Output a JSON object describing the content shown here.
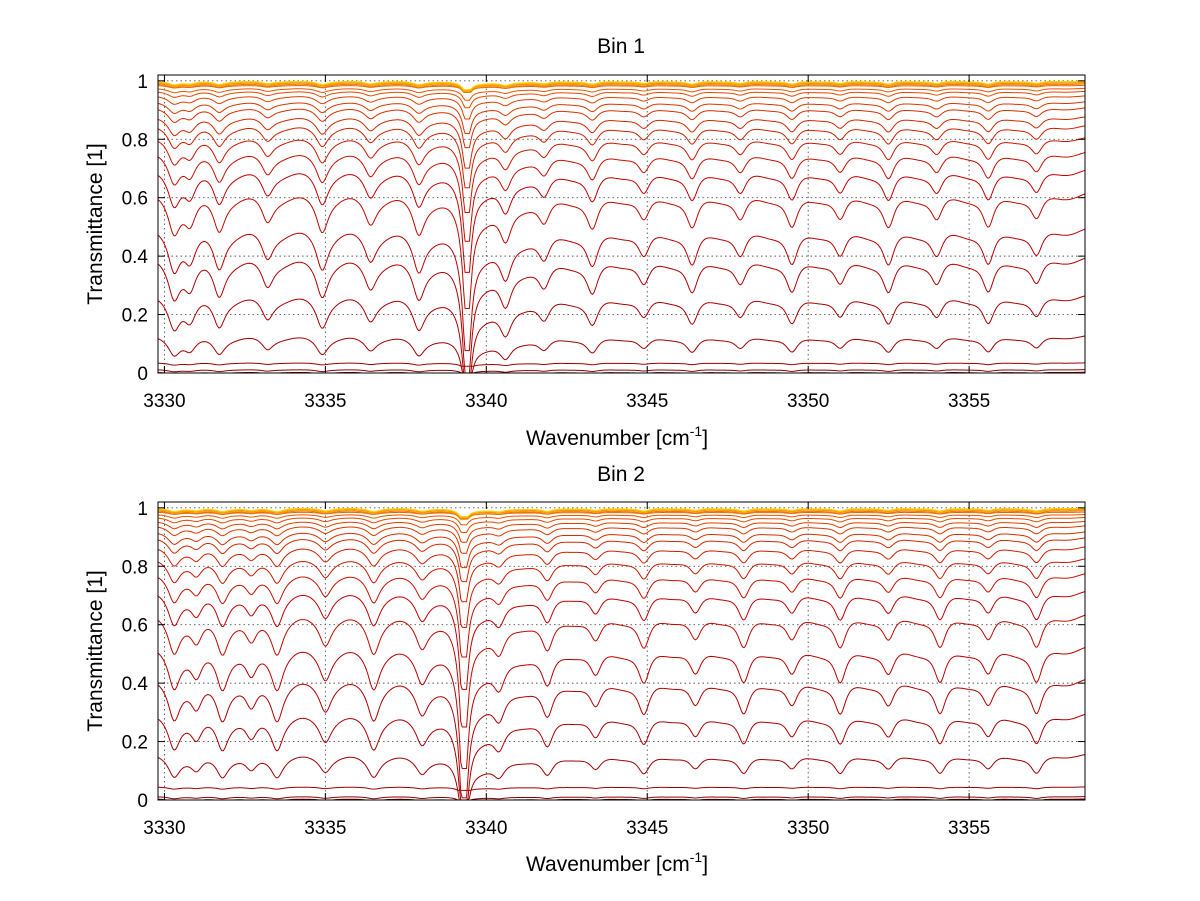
{
  "chart_data": [
    {
      "type": "line",
      "title": "Bin 1",
      "xlabel_main": "Wavenumber [cm",
      "xlabel_sup": "-1",
      "xlabel_end": "]",
      "ylabel": "Transmittance [1]",
      "xlim": [
        3329.8,
        3358.6
      ],
      "ylim": [
        0,
        1.02
      ],
      "xticks": [
        3330,
        3335,
        3340,
        3345,
        3350,
        3355
      ],
      "yticks": [
        0,
        0.2,
        0.4,
        0.6,
        0.8,
        1
      ],
      "grid": true,
      "strong_line_center": 3339.4,
      "line_centers": [
        3330.3,
        3330.8,
        3331.7,
        3333.2,
        3334.9,
        3336.4,
        3337.9,
        3339.4,
        3340.6,
        3341.8,
        3343.3,
        3344.9,
        3346.4,
        3347.9,
        3349.5,
        3351.0,
        3352.5,
        3354.0,
        3355.6,
        3357.1
      ],
      "series_baselines": [
        0.003,
        0.012,
        0.035,
        0.13,
        0.27,
        0.4,
        0.5,
        0.62,
        0.7,
        0.76,
        0.81,
        0.85,
        0.88,
        0.91,
        0.93,
        0.95,
        0.965,
        0.975,
        0.985,
        0.99,
        0.994,
        0.997,
        0.999,
        1.0
      ],
      "series_colors": [
        "#7a0000",
        "#8a0000",
        "#990000",
        "#a00000",
        "#a80000",
        "#b00000",
        "#b80000",
        "#bb0a00",
        "#c00000",
        "#c41000",
        "#c81800",
        "#cc2000",
        "#d02800",
        "#d43000",
        "#d83800",
        "#dc4000",
        "#e04a00",
        "#e45600",
        "#e86400",
        "#ee7a00",
        "#f29000",
        "#f6a800",
        "#fac000",
        "#ffd000"
      ]
    },
    {
      "type": "line",
      "title": "Bin 2",
      "xlabel_main": "Wavenumber [cm",
      "xlabel_sup": "-1",
      "xlabel_end": "]",
      "ylabel": "Transmittance [1]",
      "xlim": [
        3329.8,
        3358.6
      ],
      "ylim": [
        0,
        1.02
      ],
      "xticks": [
        3330,
        3335,
        3340,
        3345,
        3350,
        3355
      ],
      "yticks": [
        0,
        0.2,
        0.4,
        0.6,
        0.8,
        1
      ],
      "grid": true,
      "strong_line_center": 3339.3,
      "line_centers": [
        3330.3,
        3331.0,
        3331.8,
        3332.7,
        3333.5,
        3335.0,
        3336.5,
        3338.0,
        3339.3,
        3340.4,
        3341.9,
        3343.4,
        3344.9,
        3346.5,
        3348.0,
        3349.5,
        3351.0,
        3352.5,
        3354.1,
        3355.6,
        3357.1
      ],
      "series_baselines": [
        0.004,
        0.012,
        0.045,
        0.16,
        0.3,
        0.42,
        0.53,
        0.64,
        0.72,
        0.78,
        0.83,
        0.87,
        0.9,
        0.92,
        0.94,
        0.955,
        0.968,
        0.978,
        0.986,
        0.991,
        0.995,
        0.998,
        0.999,
        1.0
      ],
      "series_colors": [
        "#7a0000",
        "#8a0000",
        "#990000",
        "#a00000",
        "#a80000",
        "#b00000",
        "#b80000",
        "#bb0a00",
        "#c00000",
        "#c41000",
        "#c81800",
        "#cc2000",
        "#d02800",
        "#d43000",
        "#d83800",
        "#dc4000",
        "#e04a00",
        "#e45600",
        "#e86400",
        "#ee7a00",
        "#f29000",
        "#f6a800",
        "#fac000",
        "#ffd000"
      ]
    }
  ]
}
